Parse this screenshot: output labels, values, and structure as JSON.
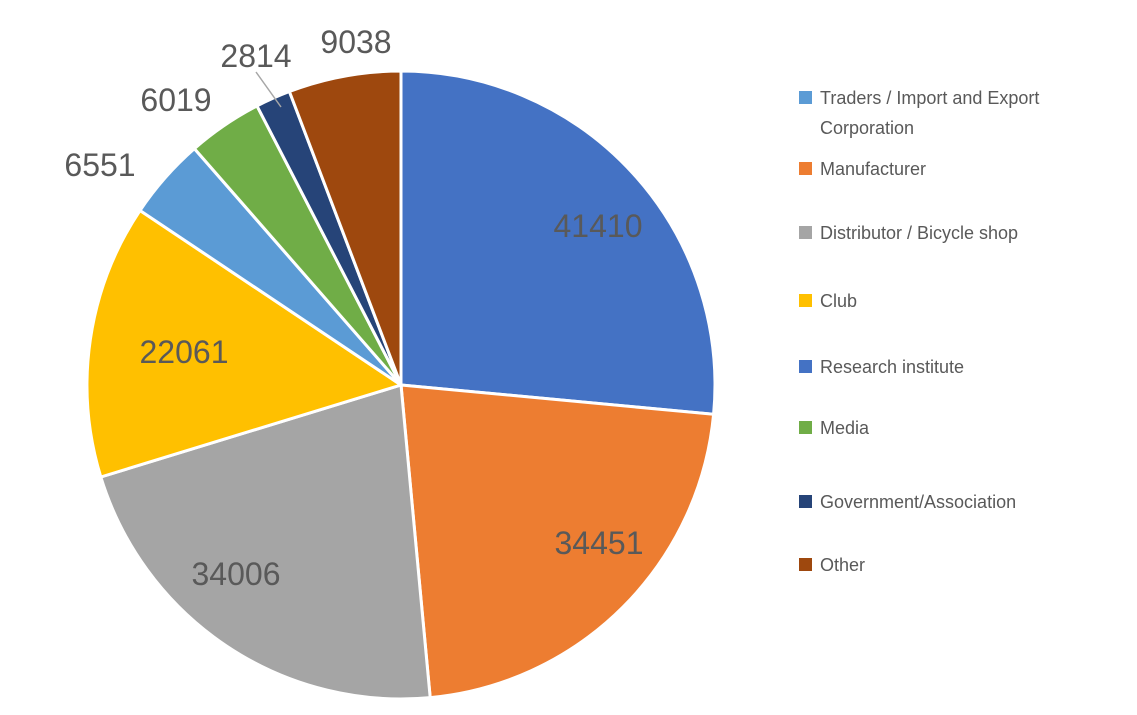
{
  "chart_data": {
    "type": "pie",
    "legend_position": "right",
    "direction": "clockwise",
    "start_angle_deg": 0,
    "label_color": "#595959",
    "slice_gap_color": "#ffffff",
    "slices": [
      {
        "category": "Research institute",
        "value": 41410,
        "color": "#4472C4",
        "label_placement": "inside"
      },
      {
        "category": "Manufacturer",
        "value": 34451,
        "color": "#ED7D31",
        "label_placement": "inside"
      },
      {
        "category": "Distributor / Bicycle shop",
        "value": 34006,
        "color": "#A5A5A5",
        "label_placement": "inside"
      },
      {
        "category": "Club",
        "value": 22061,
        "color": "#FFC000",
        "label_placement": "inside"
      },
      {
        "category": "Traders / Import and Export Corporation",
        "value": 6551,
        "color": "#5B9BD5",
        "label_placement": "outside"
      },
      {
        "category": "Media",
        "value": 6019,
        "color": "#70AD47",
        "label_placement": "outside"
      },
      {
        "category": "Government/Association",
        "value": 2814,
        "color": "#264478",
        "label_placement": "outside",
        "leader_line": true
      },
      {
        "category": "Other",
        "value": 9038,
        "color": "#9E480E",
        "label_placement": "outside"
      }
    ],
    "legend": [
      {
        "label": "Traders / Import and Export Corporation",
        "color": "#5B9BD5"
      },
      {
        "label": "Manufacturer",
        "color": "#ED7D31"
      },
      {
        "label": "Distributor / Bicycle shop",
        "color": "#A5A5A5"
      },
      {
        "label": "Club",
        "color": "#FFC000"
      },
      {
        "label": "Research institute",
        "color": "#4472C4"
      },
      {
        "label": "Media",
        "color": "#70AD47"
      },
      {
        "label": "Government/Association",
        "color": "#264478"
      },
      {
        "label": "Other",
        "color": "#9E480E"
      }
    ]
  }
}
